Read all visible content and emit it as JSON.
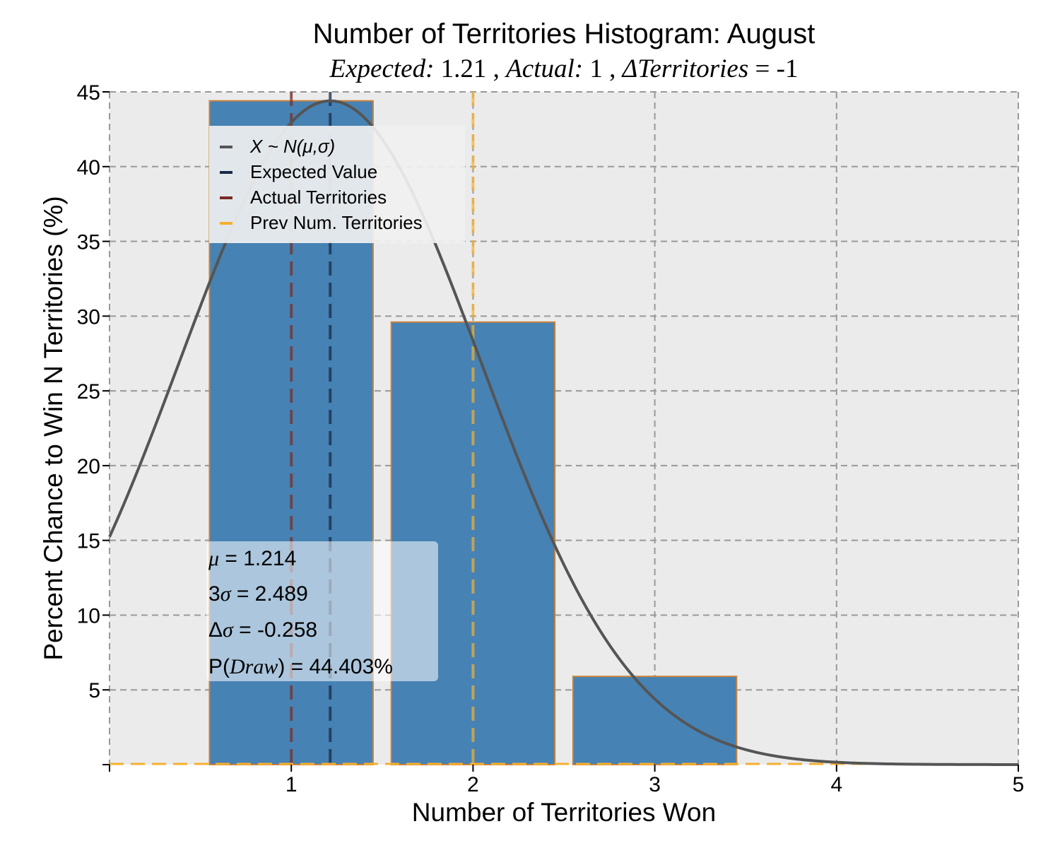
{
  "chart_data": {
    "type": "bar",
    "title": "Number of Territories Histogram: August",
    "subtitle": {
      "expected_label": "Expected:",
      "expected_value": "1.21",
      "actual_label": "Actual:",
      "actual_value": "1",
      "delta_label": "ΔTerritories",
      "delta_value": "-1"
    },
    "xlabel": "Number of Territories Won",
    "ylabel": "Percent Chance to Win N Territories (%)",
    "xlim": [
      0,
      5
    ],
    "ylim": [
      0,
      45
    ],
    "x_ticks": [
      1,
      2,
      3,
      4,
      5
    ],
    "y_ticks": [
      5,
      10,
      15,
      20,
      25,
      30,
      35,
      40,
      45
    ],
    "grid": true,
    "categories": [
      1,
      2,
      3
    ],
    "values": [
      44.4,
      29.6,
      5.9
    ],
    "bar_width": 0.9,
    "normal_curve": {
      "mu": 1.214,
      "sigma": 0.83,
      "peak": 44.4
    },
    "vlines": {
      "expected": 1.214,
      "actual": 1,
      "prev": 2
    },
    "legend": {
      "placement": "upper-left",
      "items": [
        {
          "label": "X ~ N(μ,σ)",
          "color": "#555555"
        },
        {
          "label": "Expected Value",
          "color": "#1b2a4a"
        },
        {
          "label": "Actual Territories",
          "color": "#7a2a22"
        },
        {
          "label": "Prev Num. Territories",
          "color": "#f5b030"
        }
      ]
    },
    "stats_box": {
      "mu_text": " = 1.214",
      "sigma3_text": " = 2.489",
      "dsigma_text": " = -0.258",
      "pdraw_text": ") = 44.403%"
    },
    "colors": {
      "bar": "#4682b4",
      "bar_edge": "#c9833c",
      "background": "#ebebeb",
      "grid": "#999999",
      "curve": "#555555",
      "expected": "#1b2a4a",
      "actual": "#7a2a22",
      "prev": "#f5b030"
    }
  }
}
